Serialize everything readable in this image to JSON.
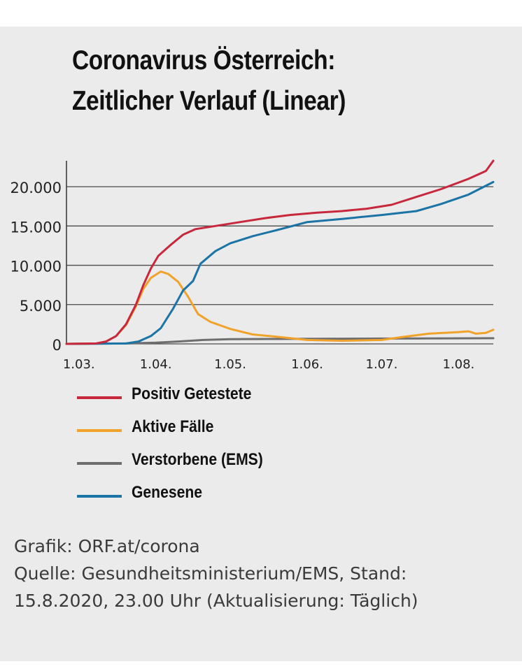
{
  "chart_data": {
    "type": "line",
    "title": "Coronavirus Österreich:",
    "subtitle": "Zeitlicher Verlauf (Linear)",
    "xlabel": "",
    "ylabel": "",
    "x_ticks": [
      "1.03.",
      "1.04.",
      "1.05.",
      "1.06.",
      "1.07.",
      "1.08."
    ],
    "y_ticks": [
      "0",
      "5.000",
      "10.000",
      "15.000",
      "20.000"
    ],
    "ylim": [
      0,
      23300
    ],
    "grid": "horizontal",
    "legend_position": "below",
    "series": [
      {
        "name": "Positiv Getestete",
        "color": "#c8283c",
        "points": [
          [
            "2020-02-25",
            0
          ],
          [
            "2020-03-08",
            50
          ],
          [
            "2020-03-12",
            300
          ],
          [
            "2020-03-16",
            1000
          ],
          [
            "2020-03-20",
            2500
          ],
          [
            "2020-03-24",
            5000
          ],
          [
            "2020-03-27",
            7500
          ],
          [
            "2020-03-30",
            9600
          ],
          [
            "2020-04-02",
            11200
          ],
          [
            "2020-04-07",
            12600
          ],
          [
            "2020-04-12",
            13900
          ],
          [
            "2020-04-17",
            14600
          ],
          [
            "2020-04-25",
            15000
          ],
          [
            "2020-05-05",
            15500
          ],
          [
            "2020-05-15",
            16000
          ],
          [
            "2020-05-25",
            16400
          ],
          [
            "2020-06-05",
            16700
          ],
          [
            "2020-06-15",
            16900
          ],
          [
            "2020-06-25",
            17200
          ],
          [
            "2020-07-05",
            17700
          ],
          [
            "2020-07-15",
            18700
          ],
          [
            "2020-07-25",
            19700
          ],
          [
            "2020-08-05",
            21000
          ],
          [
            "2020-08-12",
            22000
          ],
          [
            "2020-08-15",
            23300
          ]
        ]
      },
      {
        "name": "Aktive Fälle",
        "color": "#f0a22a",
        "points": [
          [
            "2020-02-25",
            0
          ],
          [
            "2020-03-08",
            50
          ],
          [
            "2020-03-12",
            300
          ],
          [
            "2020-03-16",
            1000
          ],
          [
            "2020-03-20",
            2400
          ],
          [
            "2020-03-24",
            4800
          ],
          [
            "2020-03-27",
            7000
          ],
          [
            "2020-03-30",
            8400
          ],
          [
            "2020-04-03",
            9200
          ],
          [
            "2020-04-06",
            8900
          ],
          [
            "2020-04-10",
            7900
          ],
          [
            "2020-04-14",
            6000
          ],
          [
            "2020-04-18",
            3800
          ],
          [
            "2020-04-23",
            2800
          ],
          [
            "2020-05-01",
            1900
          ],
          [
            "2020-05-10",
            1200
          ],
          [
            "2020-05-20",
            900
          ],
          [
            "2020-06-01",
            500
          ],
          [
            "2020-06-15",
            400
          ],
          [
            "2020-07-01",
            500
          ],
          [
            "2020-07-10",
            900
          ],
          [
            "2020-07-20",
            1300
          ],
          [
            "2020-08-01",
            1500
          ],
          [
            "2020-08-05",
            1600
          ],
          [
            "2020-08-08",
            1300
          ],
          [
            "2020-08-12",
            1400
          ],
          [
            "2020-08-15",
            1800
          ]
        ]
      },
      {
        "name": "Verstorbene (EMS)",
        "color": "#6e6e6e",
        "points": [
          [
            "2020-02-25",
            0
          ],
          [
            "2020-03-20",
            50
          ],
          [
            "2020-04-01",
            150
          ],
          [
            "2020-04-10",
            300
          ],
          [
            "2020-04-20",
            500
          ],
          [
            "2020-05-01",
            600
          ],
          [
            "2020-06-01",
            650
          ],
          [
            "2020-07-01",
            680
          ],
          [
            "2020-08-15",
            720
          ]
        ]
      },
      {
        "name": "Genesene",
        "color": "#1b74a6",
        "points": [
          [
            "2020-02-25",
            0
          ],
          [
            "2020-03-20",
            50
          ],
          [
            "2020-03-25",
            300
          ],
          [
            "2020-03-30",
            1000
          ],
          [
            "2020-04-03",
            2000
          ],
          [
            "2020-04-08",
            4500
          ],
          [
            "2020-04-12",
            6800
          ],
          [
            "2020-04-16",
            8000
          ],
          [
            "2020-04-19",
            10200
          ],
          [
            "2020-04-25",
            11800
          ],
          [
            "2020-05-01",
            12800
          ],
          [
            "2020-05-10",
            13700
          ],
          [
            "2020-05-20",
            14500
          ],
          [
            "2020-06-01",
            15500
          ],
          [
            "2020-06-15",
            15900
          ],
          [
            "2020-07-01",
            16400
          ],
          [
            "2020-07-15",
            16900
          ],
          [
            "2020-07-25",
            17800
          ],
          [
            "2020-08-05",
            19000
          ],
          [
            "2020-08-15",
            20600
          ]
        ]
      }
    ]
  },
  "legend": [
    {
      "label": "Positiv Getestete",
      "color": "#c8283c"
    },
    {
      "label": "Aktive Fälle",
      "color": "#f0a22a"
    },
    {
      "label": "Verstorbene (EMS)",
      "color": "#6e6e6e"
    },
    {
      "label": "Genesene",
      "color": "#1b74a6"
    }
  ],
  "footer": {
    "line1": "Grafik: ORF.at/corona",
    "line2": "Quelle: Gesundheitsministerium/EMS, Stand:",
    "line3": "15.8.2020, 23.00 Uhr (Aktualisierung: Täglich)"
  }
}
